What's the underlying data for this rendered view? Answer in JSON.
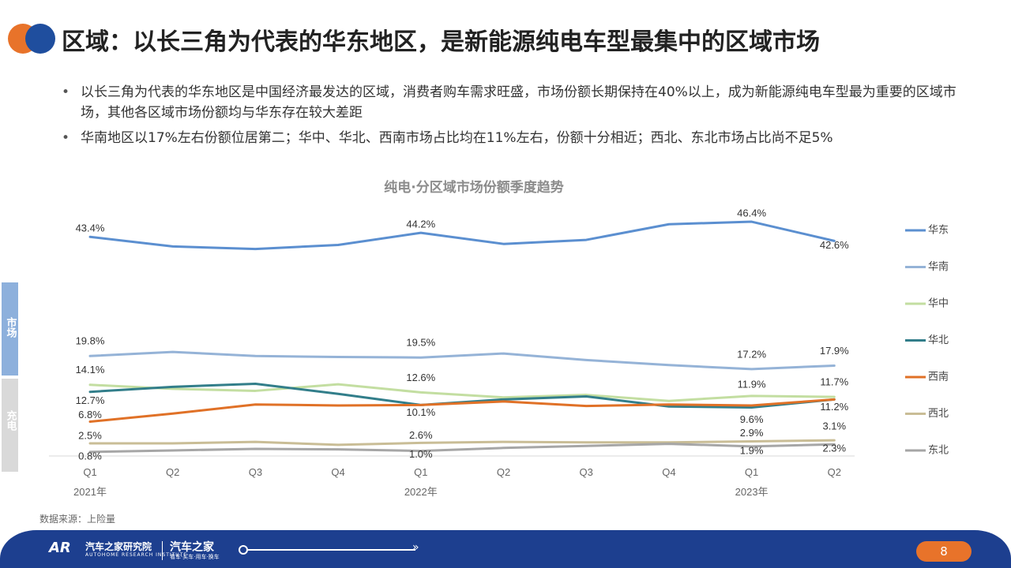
{
  "header": {
    "title": "区域：以长三角为代表的华东地区，是新能源纯电车型最集中的区域市场"
  },
  "bullets": [
    "以长三角为代表的华东地区是中国经济最发达的区域，消费者购车需求旺盛，市场份额长期保持在40%以上，成为新能源纯电车型最为重要的区域市场，其他各区域市场份额均与华东存在较大差距",
    "华南地区以17%左右份额位居第二；华中、华北、西南市场占比均在11%左右，份额十分相近；西北、东北市场占比尚不足5%"
  ],
  "side_tabs": {
    "market": "市场",
    "charge": "充电"
  },
  "source": "数据来源：上险量",
  "footer": {
    "logo": "AR",
    "org_name": "汽车之家研究院",
    "org_sub": "AUTOHOME RESEARCH INSTITUTE",
    "brand": "汽车之家",
    "brand_sub": "看车·买车·用车·换车",
    "page_number": "8"
  },
  "colors": {
    "accent_orange": "#e8732a",
    "accent_blue": "#1f4e9e",
    "footer_blue": "#1d3f8f"
  },
  "chart_data": {
    "type": "line",
    "title": "纯电·分区域市场份额季度趋势",
    "categories": [
      "Q1",
      "Q2",
      "Q3",
      "Q4",
      "Q1",
      "Q2",
      "Q3",
      "Q4",
      "Q1",
      "Q2"
    ],
    "year_labels": [
      "2021年",
      "2022年",
      "2023年"
    ],
    "ylim": [
      0,
      50
    ],
    "grid": false,
    "legend_position": "right",
    "series": [
      {
        "name": "华东",
        "color": "#5b8fd0",
        "values": [
          43.4,
          41.5,
          41.0,
          41.8,
          44.2,
          42.0,
          42.8,
          45.9,
          46.4,
          42.6
        ],
        "labels": {
          "0": "43.4%",
          "4": "44.2%",
          "8": "46.4%",
          "9": "42.6%"
        }
      },
      {
        "name": "华南",
        "color": "#95b3d7",
        "values": [
          19.8,
          20.6,
          19.8,
          19.6,
          19.5,
          20.3,
          19.0,
          18.0,
          17.2,
          17.9
        ],
        "labels": {
          "0": "19.8%",
          "4": "19.5%",
          "8": "17.2%",
          "9": "17.9%"
        }
      },
      {
        "name": "华中",
        "color": "#c3dea1",
        "values": [
          14.1,
          13.3,
          12.9,
          14.2,
          12.6,
          11.6,
          12.1,
          10.9,
          11.9,
          11.7
        ],
        "labels": {
          "0": "14.1%",
          "4": "12.6%",
          "8": "11.9%",
          "9": "11.7%"
        }
      },
      {
        "name": "华北",
        "color": "#327e8a",
        "values": [
          12.7,
          13.7,
          14.3,
          12.3,
          10.1,
          11.2,
          11.8,
          9.8,
          9.6,
          11.2
        ],
        "labels": {
          "0": "12.7%",
          "4": "10.1%",
          "8": "9.6%",
          "9": "11.2%"
        }
      },
      {
        "name": "西南",
        "color": "#e07127",
        "values": [
          6.8,
          8.4,
          10.2,
          10.0,
          10.1,
          10.8,
          9.9,
          10.2,
          10.0,
          11.2
        ],
        "labels": {
          "0": "6.8%"
        }
      },
      {
        "name": "西北",
        "color": "#c9bd96",
        "values": [
          2.5,
          2.5,
          2.8,
          2.2,
          2.6,
          2.8,
          2.7,
          2.7,
          2.9,
          3.1
        ],
        "labels": {
          "0": "2.5%",
          "4": "2.6%",
          "8": "2.9%",
          "9": "3.1%"
        }
      },
      {
        "name": "东北",
        "color": "#a6a6a6",
        "values": [
          0.8,
          1.1,
          1.4,
          1.3,
          1.0,
          1.6,
          2.0,
          2.4,
          1.9,
          2.3
        ],
        "labels": {
          "0": "0.8%",
          "4": "1.0%",
          "8": "1.9%",
          "9": "2.3%"
        }
      }
    ]
  }
}
